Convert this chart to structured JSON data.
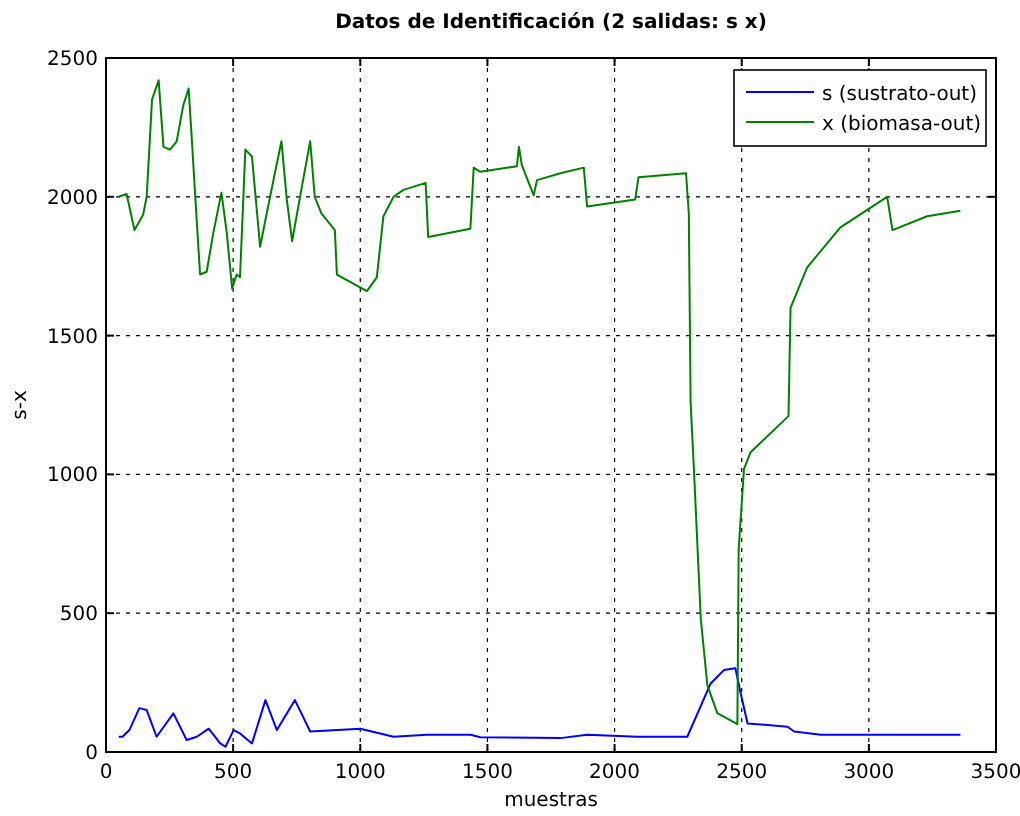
{
  "chart_data": {
    "type": "line",
    "title": "Datos de Identificación (2 salidas: s  x)",
    "xlabel": "muestras",
    "ylabel": "s-x",
    "xlim": [
      0,
      3500
    ],
    "ylim": [
      0,
      2500
    ],
    "xticks": [
      0,
      500,
      1000,
      1500,
      2000,
      2500,
      3000,
      3500
    ],
    "yticks": [
      0,
      500,
      1000,
      1500,
      2000,
      2500
    ],
    "grid": true,
    "legend": "top right",
    "series": [
      {
        "name": "s (sustrato-out)",
        "color": "#0000ff",
        "x": [
          50,
          65,
          92,
          131,
          160,
          199,
          265,
          317,
          357,
          404,
          449,
          470,
          502,
          527,
          574,
          627,
          672,
          743,
          803,
          1000,
          1131,
          1262,
          1433,
          1472,
          1787,
          1892,
          2089,
          2286,
          2378,
          2430,
          2475,
          2496,
          2523,
          2680,
          2706,
          2811,
          3360
        ],
        "values": [
          55,
          55,
          79,
          158,
          151,
          55,
          139,
          43,
          55,
          84,
          31,
          19,
          79,
          67,
          31,
          187,
          79,
          187,
          74,
          84,
          55,
          62,
          62,
          53,
          50,
          62,
          55,
          55,
          247,
          295,
          302,
          211,
          103,
          91,
          74,
          62,
          62
        ]
      },
      {
        "name": "x (biomasa-out)",
        "color": "#008000",
        "x": [
          50,
          81,
          112,
          146,
          160,
          181,
          207,
          226,
          252,
          278,
          304,
          325,
          338,
          349,
          370,
          396,
          422,
          454,
          475,
          496,
          514,
          527,
          548,
          574,
          606,
          632,
          664,
          690,
          711,
          732,
          763,
          803,
          821,
          847,
          900,
          908,
          1026,
          1065,
          1091,
          1131,
          1170,
          1257,
          1267,
          1433,
          1446,
          1472,
          1616,
          1624,
          1635,
          1682,
          1695,
          1787,
          1879,
          1892,
          2081,
          2094,
          2281,
          2292,
          2299,
          2312,
          2339,
          2365,
          2404,
          2483,
          2488,
          2509,
          2535,
          2684,
          2692,
          2757,
          2888,
          3072,
          3093,
          3229,
          3360
        ],
        "values": [
          2000,
          2010,
          1880,
          1935,
          2000,
          2350,
          2420,
          2180,
          2170,
          2200,
          2330,
          2390,
          2200,
          2030,
          1720,
          1730,
          1870,
          2015,
          1870,
          1670,
          1720,
          1710,
          2170,
          2145,
          1820,
          1940,
          2085,
          2200,
          1990,
          1840,
          2000,
          2200,
          2000,
          1940,
          1880,
          1720,
          1660,
          1710,
          1930,
          2000,
          2025,
          2050,
          1855,
          1885,
          2105,
          2090,
          2110,
          2180,
          2115,
          2005,
          2060,
          2085,
          2105,
          1965,
          1990,
          2070,
          2085,
          1940,
          1260,
          1020,
          480,
          240,
          140,
          100,
          730,
          1020,
          1080,
          1210,
          1600,
          1745,
          1890,
          2000,
          1880,
          1930,
          1950
        ]
      }
    ]
  }
}
